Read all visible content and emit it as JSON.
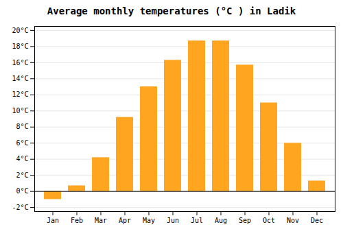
{
  "chart_data": {
    "type": "bar",
    "title": "Average monthly temperatures (°C ) in Ladik",
    "categories": [
      "Jan",
      "Feb",
      "Mar",
      "Apr",
      "May",
      "Jun",
      "Jul",
      "Aug",
      "Sep",
      "Oct",
      "Nov",
      "Dec"
    ],
    "values": [
      -1.0,
      0.7,
      4.2,
      9.2,
      13.0,
      16.3,
      18.7,
      18.7,
      15.7,
      11.0,
      6.0,
      1.3
    ],
    "color": "#FFA520",
    "ylim": [
      -2.5,
      20.5
    ],
    "yticks": [
      {
        "value": -2,
        "label": "-2°C"
      },
      {
        "value": 0,
        "label": "0°C"
      },
      {
        "value": 2,
        "label": "2°C"
      },
      {
        "value": 4,
        "label": "4°C"
      },
      {
        "value": 6,
        "label": "6°C"
      },
      {
        "value": 8,
        "label": "8°C"
      },
      {
        "value": 10,
        "label": "10°C"
      },
      {
        "value": 12,
        "label": "12°C"
      },
      {
        "value": 14,
        "label": "14°C"
      },
      {
        "value": 16,
        "label": "16°C"
      },
      {
        "value": 18,
        "label": "18°C"
      },
      {
        "value": 20,
        "label": "20°C"
      }
    ],
    "grid": true
  }
}
